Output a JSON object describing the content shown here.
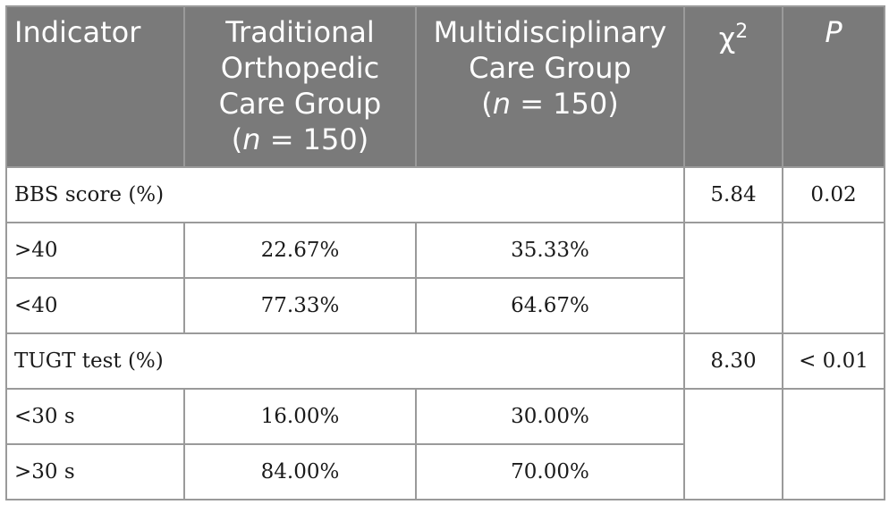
{
  "table": {
    "headers": {
      "indicator": "Indicator",
      "traditional": [
        "Traditional",
        "Orthopedic",
        "Care Group"
      ],
      "traditional_n_var": "n",
      "traditional_n_val": " = 150)",
      "multidisciplinary": [
        "Multidisciplinary",
        "Care Group"
      ],
      "multidisciplinary_n_var": "n",
      "multidisciplinary_n_val": " = 150)",
      "chi": "χ",
      "chi_sup": "2",
      "p": "P"
    },
    "sections": [
      {
        "label": "BBS score (%)",
        "chi2": "5.84",
        "p": "0.02",
        "rows": [
          {
            "label": ">40",
            "traditional": "22.67%",
            "multidisciplinary": "35.33%"
          },
          {
            "label": "<40",
            "traditional": "77.33%",
            "multidisciplinary": "64.67%"
          }
        ]
      },
      {
        "label": "TUGT test (%)",
        "chi2": "8.30",
        "p": "< 0.01",
        "rows": [
          {
            "label": "<30 s",
            "traditional": "16.00%",
            "multidisciplinary": "30.00%"
          },
          {
            "label": ">30 s",
            "traditional": "84.00%",
            "multidisciplinary": "70.00%"
          }
        ]
      }
    ]
  }
}
